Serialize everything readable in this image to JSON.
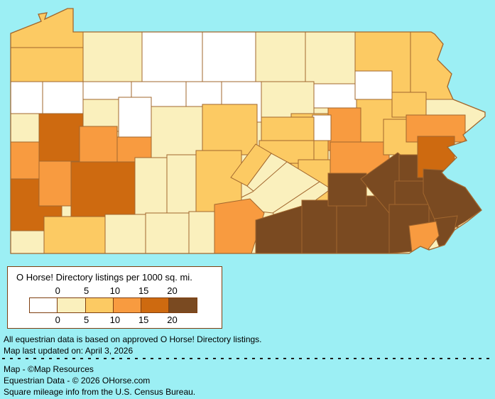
{
  "colors": {
    "background": "#9CEFF4",
    "county_border": "#A2672E",
    "state_outline": "#A2672E",
    "legend_border": "#7E3F10",
    "text": "#000000"
  },
  "legend": {
    "title": "O Horse! Directory listings per 1000 sq. mi.",
    "ticks": [
      "0",
      "5",
      "10",
      "15",
      "20"
    ],
    "swatches": [
      "#FFFFFF",
      "#FAF0BD",
      "#FCCA63",
      "#F89B40",
      "#CE6A10",
      "#7A4A21"
    ]
  },
  "notes": {
    "line1": "All equestrian data is based on approved O Horse! Directory listings.",
    "line2": "Map last updated on: April 3, 2026"
  },
  "credits": {
    "line1": "Map - ©Map Resources",
    "line2": "Equestrian Data - © 2026 OHorse.com",
    "line3": "Square mileage info from the U.S. Census Bureau."
  },
  "map": {
    "state": "Pennsylvania",
    "metric": "O Horse! Directory listings per 1000 sq. mi.",
    "counties": [
      {
        "name": "Erie",
        "bucket": 2
      },
      {
        "name": "Crawford",
        "bucket": 2
      },
      {
        "name": "Warren",
        "bucket": 1
      },
      {
        "name": "McKean",
        "bucket": 0
      },
      {
        "name": "Potter",
        "bucket": 0
      },
      {
        "name": "Tioga",
        "bucket": 1
      },
      {
        "name": "Bradford",
        "bucket": 1
      },
      {
        "name": "Susquehanna",
        "bucket": 2
      },
      {
        "name": "Wayne",
        "bucket": 2
      },
      {
        "name": "Pike",
        "bucket": 1
      },
      {
        "name": "Mercer",
        "bucket": 0
      },
      {
        "name": "Lawrence",
        "bucket": 1
      },
      {
        "name": "Beaver",
        "bucket": 3
      },
      {
        "name": "Venango",
        "bucket": 0
      },
      {
        "name": "Forest",
        "bucket": 0
      },
      {
        "name": "Elk",
        "bucket": 0
      },
      {
        "name": "Cameron",
        "bucket": 0
      },
      {
        "name": "Clinton",
        "bucket": 0
      },
      {
        "name": "Lycoming",
        "bucket": 1
      },
      {
        "name": "Sullivan",
        "bucket": 0
      },
      {
        "name": "Wyoming",
        "bucket": 0
      },
      {
        "name": "Lackawanna",
        "bucket": 2
      },
      {
        "name": "Luzerne",
        "bucket": 2
      },
      {
        "name": "Columbia",
        "bucket": 3
      },
      {
        "name": "Northumberland",
        "bucket": 2
      },
      {
        "name": "Montour",
        "bucket": 0
      },
      {
        "name": "Union",
        "bucket": 2
      },
      {
        "name": "Snyder",
        "bucket": 2
      },
      {
        "name": "Clearfield",
        "bucket": 1
      },
      {
        "name": "Centre",
        "bucket": 2
      },
      {
        "name": "Jefferson",
        "bucket": 0
      },
      {
        "name": "Clarion",
        "bucket": 1
      },
      {
        "name": "Butler",
        "bucket": 4
      },
      {
        "name": "Armstrong",
        "bucket": 3
      },
      {
        "name": "Indiana",
        "bucket": 3
      },
      {
        "name": "Washington",
        "bucket": 4
      },
      {
        "name": "Allegheny",
        "bucket": 3
      },
      {
        "name": "Westmoreland",
        "bucket": 4
      },
      {
        "name": "Cambria",
        "bucket": 1
      },
      {
        "name": "Blair",
        "bucket": 1
      },
      {
        "name": "Huntingdon",
        "bucket": 2
      },
      {
        "name": "Mifflin",
        "bucket": 2
      },
      {
        "name": "Juniata",
        "bucket": 1
      },
      {
        "name": "Dauphin",
        "bucket": 2
      },
      {
        "name": "Perry",
        "bucket": 1
      },
      {
        "name": "Cumberland",
        "bucket": 1
      },
      {
        "name": "Greene",
        "bucket": 1
      },
      {
        "name": "Fayette",
        "bucket": 2
      },
      {
        "name": "Somerset",
        "bucket": 1
      },
      {
        "name": "Bedford",
        "bucket": 1
      },
      {
        "name": "Fulton",
        "bucket": 1
      },
      {
        "name": "Franklin",
        "bucket": 3
      },
      {
        "name": "Schuylkill",
        "bucket": 3
      },
      {
        "name": "Carbon",
        "bucket": 2
      },
      {
        "name": "Monroe",
        "bucket": 3
      },
      {
        "name": "Adams",
        "bucket": 5
      },
      {
        "name": "York",
        "bucket": 5
      },
      {
        "name": "Lancaster",
        "bucket": 5
      },
      {
        "name": "Lebanon",
        "bucket": 5
      },
      {
        "name": "Berks",
        "bucket": 5
      },
      {
        "name": "Lehigh",
        "bucket": 5
      },
      {
        "name": "Northampton",
        "bucket": 4
      },
      {
        "name": "Montgomery",
        "bucket": 5
      },
      {
        "name": "Chester",
        "bucket": 5
      },
      {
        "name": "Bucks",
        "bucket": 5
      },
      {
        "name": "Philadelphia",
        "bucket": 5
      },
      {
        "name": "Delaware",
        "bucket": 3
      }
    ]
  }
}
